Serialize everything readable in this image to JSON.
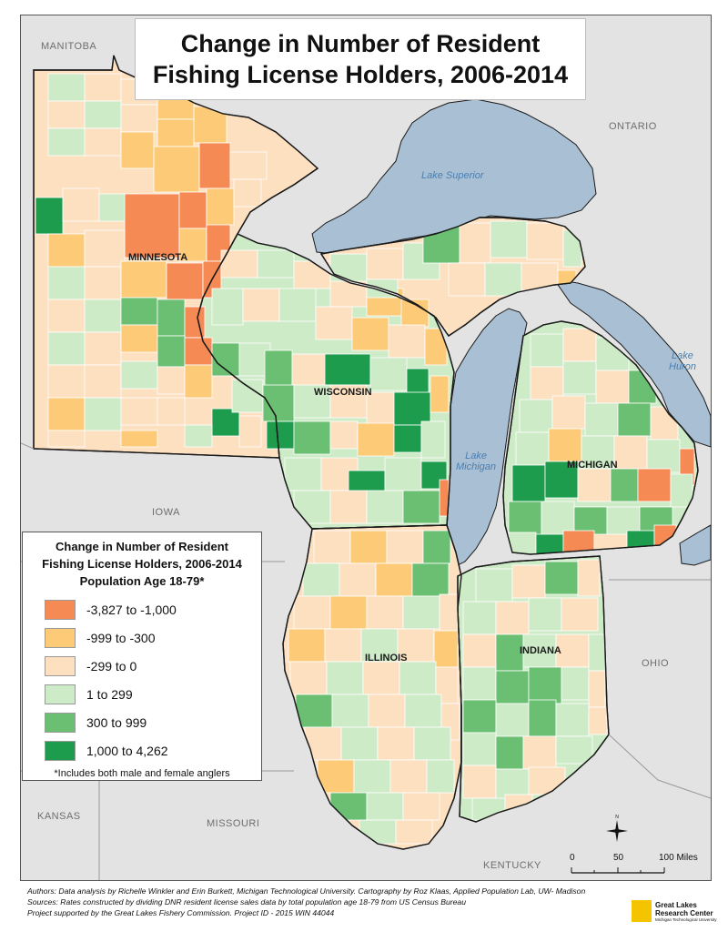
{
  "title": {
    "line1": "Change in Number of Resident",
    "line2": "Fishing License Holders, 2006-2014"
  },
  "regions": {
    "manitoba": "MANITOBA",
    "ontario": "ONTARIO",
    "iowa": "IOWA",
    "ohio": "OHIO",
    "kansas": "KANSAS",
    "missouri": "MISSOURI",
    "kentucky": "KENTUCKY"
  },
  "states": {
    "minnesota": "MINNESOTA",
    "wisconsin": "WISCONSIN",
    "michigan": "MICHIGAN",
    "illinois": "ILLINOIS",
    "indiana": "INDIANA"
  },
  "lakes": {
    "superior": "Lake Superior",
    "michigan_line1": "Lake",
    "michigan_line2": "Michigan",
    "huron_line1": "Lake",
    "huron_line2": "Huron"
  },
  "legend": {
    "title_line1": "Change in Number of Resident",
    "title_line2": "Fishing License Holders, 2006-2014",
    "title_line3": "Population Age 18-79*",
    "items": [
      {
        "label": "-3,827 to -1,000",
        "color": "#f68a54"
      },
      {
        "label": "-999 to -300",
        "color": "#fdcb78"
      },
      {
        "label": "-299 to 0",
        "color": "#fde0c0"
      },
      {
        "label": "1 to 299",
        "color": "#cdebc6"
      },
      {
        "label": "300 to 999",
        "color": "#6bbf72"
      },
      {
        "label": "1,000 to 4,262",
        "color": "#1e9c4e"
      }
    ],
    "note": "*Includes both male and female anglers"
  },
  "scale": {
    "label_0": "0",
    "label_50": "50",
    "label_100": "100 Miles"
  },
  "compass": {
    "north": "N"
  },
  "footer": {
    "line1": "Authors: Data analysis by Richelle Winkler and Erin Burkett, Michigan Technological University. Cartography by Roz Klaas, Applied Population Lab, UW- Madison",
    "line2": "Sources: Rates constructed by dividing DNR resident license sales data by total population age 18-79 from US Census Bureau",
    "line3": "Project supported by the Great Lakes Fishery Commission. Project ID - 2015 WIN 44044"
  },
  "logo": {
    "line1": "Great Lakes",
    "line2": "Research Center",
    "line3": "Michigan Technological University"
  },
  "colors": {
    "water": "#a9bfd4",
    "land_outside": "#e3e3e3",
    "state_border": "#1a1a1a",
    "county_border": "#ffffff"
  }
}
